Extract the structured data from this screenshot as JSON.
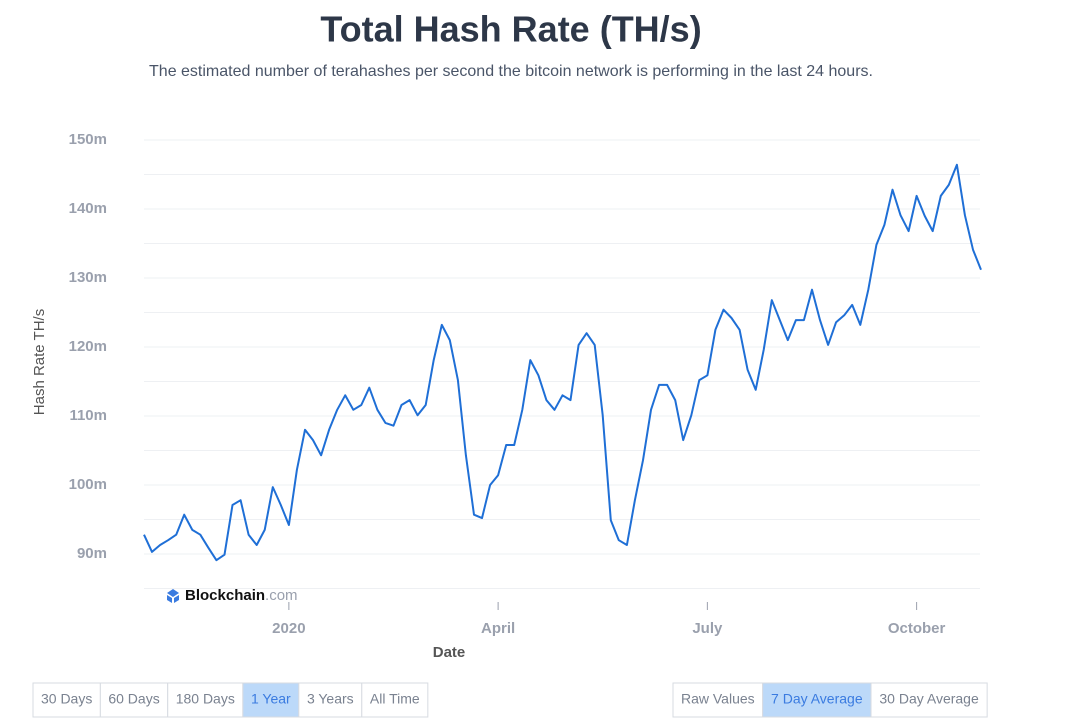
{
  "chart_data": {
    "type": "line",
    "title": "Total Hash Rate (TH/s)",
    "subtitle": "The estimated number of terahashes per second the bitcoin network is performing in the last 24 hours.",
    "y_label": "Hash Rate TH/s",
    "x_label": "Date",
    "watermark": {
      "name": "Blockchain",
      "suffix": ".com"
    },
    "categories": [
      null,
      null,
      null,
      null,
      null,
      null,
      null,
      null,
      null,
      null,
      null,
      null,
      null,
      null,
      null,
      null,
      null,
      null,
      "2020",
      null,
      null,
      null,
      null,
      null,
      null,
      null,
      null,
      null,
      null,
      null,
      null,
      null,
      null,
      null,
      null,
      null,
      null,
      null,
      null,
      null,
      null,
      null,
      null,
      null,
      "April",
      null,
      null,
      null,
      null,
      null,
      null,
      null,
      null,
      null,
      null,
      null,
      null,
      null,
      null,
      null,
      null,
      null,
      null,
      null,
      null,
      null,
      null,
      null,
      null,
      null,
      "July",
      null,
      null,
      null,
      null,
      null,
      null,
      null,
      null,
      null,
      null,
      null,
      null,
      null,
      null,
      null,
      null,
      null,
      null,
      null,
      null,
      null,
      null,
      null,
      null,
      null,
      "October",
      null,
      null,
      null,
      null,
      null,
      null,
      null,
      null
    ],
    "series": [
      {
        "name": "Hash Rate TH/s",
        "color": "#1f6fd6",
        "values": [
          92.8,
          90.3,
          91.3,
          92.0,
          92.8,
          95.7,
          93.5,
          92.8,
          90.9,
          89.1,
          89.9,
          97.1,
          97.8,
          92.8,
          91.3,
          93.5,
          99.7,
          97.1,
          94.2,
          102.2,
          108.0,
          106.5,
          104.3,
          108.0,
          110.9,
          113.0,
          110.9,
          111.6,
          114.1,
          110.9,
          109.0,
          108.6,
          111.6,
          112.3,
          110.1,
          111.6,
          118.1,
          123.2,
          121.0,
          115.2,
          104.3,
          95.7,
          95.2,
          100.0,
          101.4,
          105.8,
          105.8,
          110.9,
          118.1,
          115.9,
          112.3,
          110.9,
          113.0,
          112.3,
          120.3,
          122.0,
          120.3,
          110.1,
          94.9,
          92.0,
          91.3,
          97.8,
          103.6,
          110.9,
          114.5,
          114.5,
          112.3,
          106.5,
          110.1,
          115.2,
          115.9,
          122.5,
          125.4,
          124.2,
          122.5,
          116.7,
          113.8,
          119.6,
          126.8,
          123.9,
          121.0,
          123.9,
          123.9,
          128.3,
          123.9,
          120.3,
          123.6,
          124.6,
          126.1,
          123.2,
          128.3,
          134.8,
          137.7,
          142.8,
          139.1,
          136.8,
          141.9,
          139.0,
          136.8,
          141.9,
          143.5,
          146.4,
          139.1,
          134.1,
          131.2
        ]
      }
    ],
    "ylim": [
      85,
      152
    ],
    "yticks": [
      {
        "value": 90,
        "label": "90m"
      },
      {
        "value": 100,
        "label": "100m"
      },
      {
        "value": 110,
        "label": "110m"
      },
      {
        "value": 120,
        "label": "120m"
      },
      {
        "value": 130,
        "label": "130m"
      },
      {
        "value": 140,
        "label": "140m"
      },
      {
        "value": 150,
        "label": "150m"
      }
    ],
    "minor_yticks": [
      85,
      95,
      105,
      115,
      125,
      135,
      145
    ],
    "grid": true,
    "range_buttons": [
      {
        "label": "30 Days"
      },
      {
        "label": "60 Days"
      },
      {
        "label": "180 Days"
      },
      {
        "label": "1 Year",
        "selected": true
      },
      {
        "label": "3 Years"
      },
      {
        "label": "All Time"
      }
    ],
    "average_buttons": [
      {
        "label": "Raw Values"
      },
      {
        "label": "7 Day Average",
        "selected": true
      },
      {
        "label": "30 Day Average"
      }
    ]
  }
}
